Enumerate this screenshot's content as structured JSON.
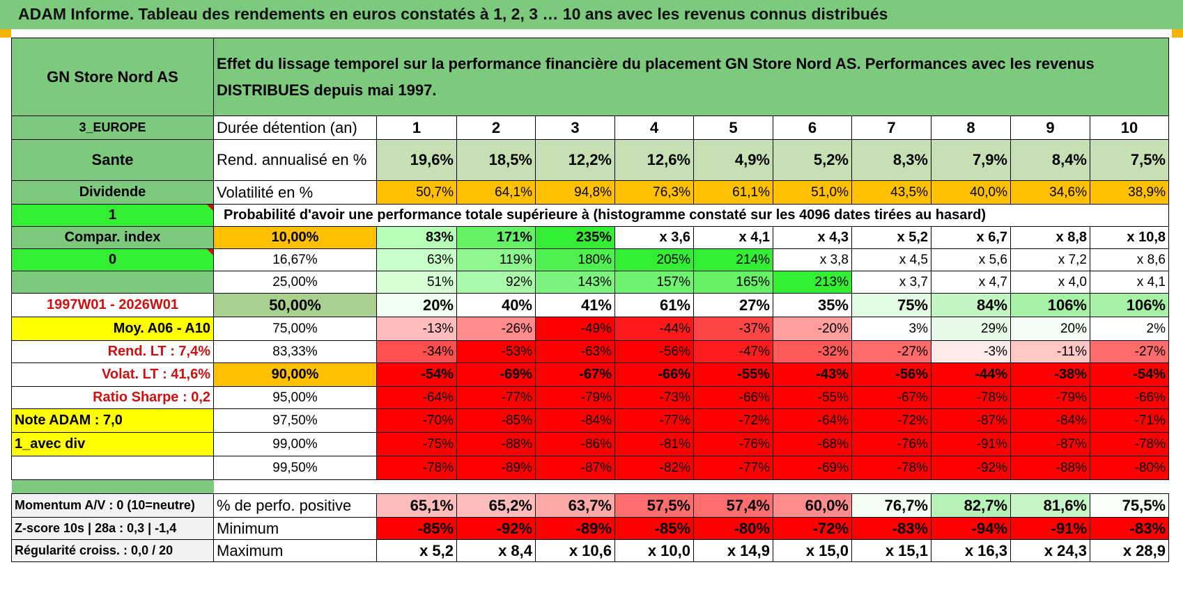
{
  "title": "ADAM Informe. Tableau des rendements en euros constatés à 1, 2, 3 … 10 ans avec les revenus connus distribués",
  "header": {
    "fund": "GN Store Nord AS",
    "desc": "Effet du lissage temporel sur la performance financière du placement GN Store Nord AS. Performances avec les revenus DISTRIBUES depuis mai 1997."
  },
  "sidebar": {
    "region": "3_EUROPE",
    "sector": "Sante",
    "type": "Dividende",
    "flag1": "1",
    "compar": "Compar. index",
    "flag0": "0",
    "blank": "",
    "period": "1997W01 - 2026W01",
    "moy": "Moy. A06 - A10",
    "rend_lt": "Rend. LT :    7,4%",
    "volat_lt": "Volat. LT :    41,6%",
    "sharpe": "Ratio Sharpe :     0,2",
    "note": "Note ADAM : 7,0",
    "avec_div": "1_avec div",
    "empty": ""
  },
  "labels": {
    "duree": "Durée détention (an)",
    "rend": "Rend. annualisé en %",
    "vol": "Volatilité en %",
    "prob": "Probabilité d'avoir une performance totale supérieure à (histogramme constaté sur les 4096 dates tirées au hasard)"
  },
  "years": [
    "1",
    "2",
    "3",
    "4",
    "5",
    "6",
    "7",
    "8",
    "9",
    "10"
  ],
  "rend": [
    "19,6%",
    "18,5%",
    "12,2%",
    "12,6%",
    "4,9%",
    "5,2%",
    "8,3%",
    "7,9%",
    "8,4%",
    "7,5%"
  ],
  "vol": [
    "50,7%",
    "64,1%",
    "94,8%",
    "76,3%",
    "61,1%",
    "51,0%",
    "43,5%",
    "40,0%",
    "34,6%",
    "38,9%"
  ],
  "quantiles": [
    {
      "p": "10,00%",
      "v": [
        "83%",
        "171%",
        "235%",
        "x 3,6",
        "x 4,1",
        "x 4,3",
        "x 5,2",
        "x 6,7",
        "x 8,8",
        "x 10,8"
      ]
    },
    {
      "p": "16,67%",
      "v": [
        "63%",
        "119%",
        "180%",
        "205%",
        "214%",
        "x 3,8",
        "x 4,5",
        "x 5,6",
        "x 7,2",
        "x 8,6"
      ]
    },
    {
      "p": "25,00%",
      "v": [
        "51%",
        "92%",
        "143%",
        "157%",
        "165%",
        "213%",
        "x 3,7",
        "x 4,7",
        "x 4,0",
        "x 4,1"
      ]
    },
    {
      "p": "50,00%",
      "v": [
        "20%",
        "40%",
        "41%",
        "61%",
        "27%",
        "35%",
        "75%",
        "84%",
        "106%",
        "106%"
      ]
    },
    {
      "p": "75,00%",
      "v": [
        "-13%",
        "-26%",
        "-49%",
        "-44%",
        "-37%",
        "-20%",
        "3%",
        "29%",
        "20%",
        "2%"
      ]
    },
    {
      "p": "83,33%",
      "v": [
        "-34%",
        "-53%",
        "-63%",
        "-56%",
        "-47%",
        "-32%",
        "-27%",
        "-3%",
        "-11%",
        "-27%"
      ]
    },
    {
      "p": "90,00%",
      "v": [
        "-54%",
        "-69%",
        "-67%",
        "-66%",
        "-55%",
        "-43%",
        "-56%",
        "-44%",
        "-38%",
        "-54%"
      ]
    },
    {
      "p": "95,00%",
      "v": [
        "-64%",
        "-77%",
        "-79%",
        "-73%",
        "-66%",
        "-55%",
        "-67%",
        "-78%",
        "-79%",
        "-66%"
      ]
    },
    {
      "p": "97,50%",
      "v": [
        "-70%",
        "-85%",
        "-84%",
        "-77%",
        "-72%",
        "-64%",
        "-72%",
        "-87%",
        "-84%",
        "-71%"
      ]
    },
    {
      "p": "99,00%",
      "v": [
        "-75%",
        "-88%",
        "-86%",
        "-81%",
        "-76%",
        "-68%",
        "-76%",
        "-91%",
        "-87%",
        "-78%"
      ]
    },
    {
      "p": "99,50%",
      "v": [
        "-78%",
        "-89%",
        "-87%",
        "-82%",
        "-77%",
        "-69%",
        "-78%",
        "-92%",
        "-88%",
        "-80%"
      ]
    }
  ],
  "footer": [
    {
      "side": "Momentum A/V : 0 (10=neutre)",
      "label": "% de perfo. positive",
      "v": [
        "65,1%",
        "65,2%",
        "63,7%",
        "57,5%",
        "57,4%",
        "60,0%",
        "76,7%",
        "82,7%",
        "81,6%",
        "75,5%"
      ]
    },
    {
      "side": "Z-score 10s | 28a : 0,3 | -1,4",
      "label": "Minimum",
      "v": [
        "-85%",
        "-92%",
        "-89%",
        "-85%",
        "-80%",
        "-72%",
        "-83%",
        "-94%",
        "-91%",
        "-83%"
      ]
    },
    {
      "side": "Régularité croiss. : 0,0 / 20",
      "label": "Maximum",
      "v": [
        "x 5,2",
        "x 8,4",
        "x 10,6",
        "x 10,0",
        "x 14,9",
        "x 15,0",
        "x 15,1",
        "x 16,3",
        "x 24,3",
        "x 28,9"
      ]
    }
  ],
  "colors": {
    "header_green": "#7dc97e",
    "rend_green": "#c6e0b4",
    "vol_orange": "#ffc000",
    "bright_green": "#33ee33",
    "red": "#ff0000",
    "yellow": "#ffff00",
    "label_red": "#d01010"
  }
}
